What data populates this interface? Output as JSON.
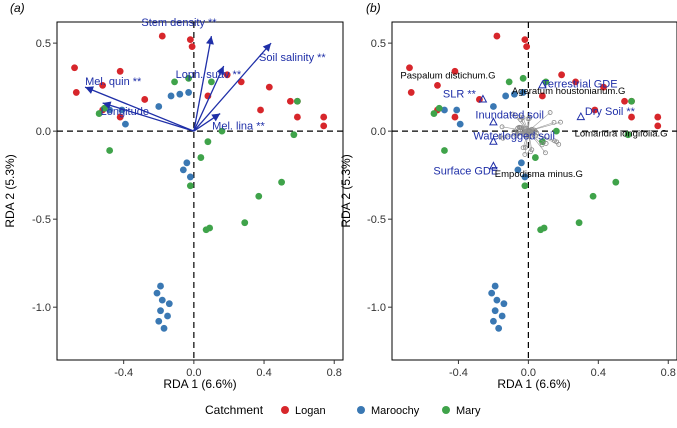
{
  "colors": {
    "Logan": "#d7262b",
    "Maroochy": "#3a78b3",
    "Mary": "#3fa34a",
    "arrow": "#1f2fa8"
  },
  "chart_data": [
    {
      "panel": "(a)",
      "type": "scatter",
      "xlabel": "RDA 1 (6.6%)",
      "ylabel": "RDA 2 (5.3%)",
      "xlim": [
        -0.78,
        0.85
      ],
      "ylim": [
        -1.3,
        0.62
      ],
      "x_ticks": [
        "-0.4",
        "0.0",
        "0.4",
        "0.8"
      ],
      "y_ticks": [
        "0.5",
        "0.0",
        "-0.5",
        "-1.0"
      ],
      "series": [
        {
          "name": "Logan",
          "points": [
            [
              -0.68,
              0.36
            ],
            [
              -0.67,
              0.22
            ],
            [
              -0.52,
              0.26
            ],
            [
              -0.42,
              0.34
            ],
            [
              -0.18,
              0.54
            ],
            [
              -0.02,
              0.52
            ],
            [
              -0.01,
              0.48
            ],
            [
              0.19,
              0.32
            ],
            [
              0.27,
              0.28
            ],
            [
              0.43,
              0.25
            ],
            [
              0.55,
              0.17
            ],
            [
              0.59,
              0.17
            ],
            [
              0.59,
              0.08
            ],
            [
              0.74,
              0.08
            ],
            [
              0.74,
              0.03
            ],
            [
              0.08,
              0.2
            ],
            [
              -0.52,
              0.12
            ],
            [
              -0.42,
              0.08
            ],
            [
              0.38,
              0.12
            ],
            [
              -0.28,
              0.18
            ]
          ]
        },
        {
          "name": "Maroochy",
          "points": [
            [
              -0.48,
              0.12
            ],
            [
              -0.41,
              0.12
            ],
            [
              -0.39,
              0.04
            ],
            [
              -0.2,
              0.14
            ],
            [
              -0.13,
              0.2
            ],
            [
              -0.03,
              0.22
            ],
            [
              -0.08,
              0.21
            ],
            [
              -0.04,
              -0.18
            ],
            [
              -0.06,
              -0.22
            ],
            [
              -0.02,
              -0.26
            ],
            [
              -0.19,
              -0.88
            ],
            [
              -0.18,
              -0.96
            ],
            [
              -0.19,
              -1.02
            ],
            [
              -0.15,
              -1.05
            ],
            [
              -0.2,
              -1.08
            ],
            [
              -0.17,
              -1.12
            ],
            [
              -0.14,
              -0.98
            ],
            [
              -0.21,
              -0.92
            ]
          ]
        },
        {
          "name": "Mary",
          "points": [
            [
              -0.51,
              0.13
            ],
            [
              -0.48,
              -0.11
            ],
            [
              -0.54,
              0.1
            ],
            [
              0.08,
              -0.06
            ],
            [
              0.16,
              0.0
            ],
            [
              0.04,
              -0.15
            ],
            [
              -0.02,
              -0.31
            ],
            [
              0.07,
              -0.56
            ],
            [
              0.09,
              -0.55
            ],
            [
              0.29,
              -0.52
            ],
            [
              0.37,
              -0.37
            ],
            [
              0.5,
              -0.29
            ],
            [
              0.57,
              -0.02
            ],
            [
              0.59,
              0.17
            ],
            [
              0.1,
              0.28
            ],
            [
              -0.03,
              0.3
            ],
            [
              -0.11,
              0.28
            ]
          ]
        }
      ],
      "arrows": [
        {
          "label": "Stem density **",
          "x": 0.1,
          "y": 0.54
        },
        {
          "label": "Soil salinity **",
          "x": 0.44,
          "y": 0.5
        },
        {
          "label": "Loph. suav **",
          "x": 0.17,
          "y": 0.37
        },
        {
          "label": "Mel. quin **",
          "x": -0.62,
          "y": 0.25
        },
        {
          "label": "Longitude",
          "x": -0.52,
          "y": 0.16
        },
        {
          "label": "Mel. lina **",
          "x": 0.15,
          "y": 0.1
        }
      ]
    },
    {
      "panel": "(b)",
      "type": "scatter",
      "xlabel": "RDA 1 (6.6%)",
      "ylabel": "RDA 2 (5.3%)",
      "xlim": [
        -0.78,
        0.85
      ],
      "ylim": [
        -1.3,
        0.62
      ],
      "x_ticks": [
        "-0.4",
        "0.0",
        "0.4",
        "0.8"
      ],
      "y_ticks": [
        "0.5",
        "0.0",
        "-0.5",
        "-1.0"
      ],
      "env_labels": [
        {
          "label": "Terrestrial GDE",
          "x": 0.08,
          "y": 0.26
        },
        {
          "label": "SLR **",
          "x": -0.26,
          "y": 0.18
        },
        {
          "label": "Dry Soil **",
          "x": 0.3,
          "y": 0.08
        },
        {
          "label": "Inundated soil",
          "x": -0.2,
          "y": 0.05
        },
        {
          "label": "Waterlogged soil",
          "x": -0.2,
          "y": -0.06
        },
        {
          "label": "Surface GDE",
          "x": -0.2,
          "y": -0.2
        }
      ],
      "taxa_labels": [
        {
          "label": "Paspalum distichum.G",
          "x": -0.46,
          "y": 0.3
        },
        {
          "label": "Ageratum houstonianum.G",
          "x": 0.23,
          "y": 0.21
        },
        {
          "label": "Lomandra longifolia.G",
          "x": 0.53,
          "y": -0.03
        },
        {
          "label": "Empodisma minus.G",
          "x": 0.06,
          "y": -0.26
        }
      ]
    }
  ],
  "legend": {
    "title": "Catchment",
    "items": [
      "Logan",
      "Maroochy",
      "Mary"
    ]
  }
}
